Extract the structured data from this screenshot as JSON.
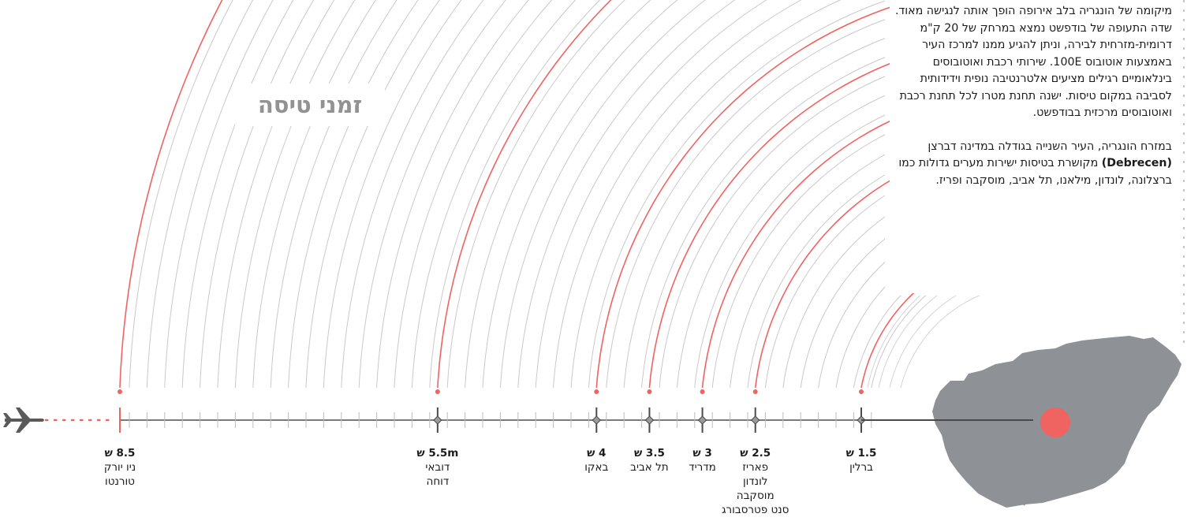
{
  "title": "זמני טיסה",
  "description": {
    "p1": "מיקומה של הונגריה בלב אירופה הופך אותה לנגישה מאוד. שדה התעופה של בודפשט נמצא במרחק של 20 ק\"מ דרומית-מזרחית לבירה, וניתן להגיע ממנו למרכז העיר באמצעות אוטובוס 100E. שירותי רכבת ואוטובוסים בינלאומיים רגילים מציעים אלטרנטיבה נופית וידידותית לסביבה במקום טיסות. ישנה תחנת מטרו לכל תחנת רכבת ואוטובוסים מרכזית בבודפשט.",
    "p2_before": "במזרח הונגריה, העיר השנייה בגודלה במדינה דברצן ",
    "p2_bold": "(Debrecen)",
    "p2_after": " מקושרת בטיסות ישירות מערים גדולות כמו ברצלונה, לונדון, מילאנו, תל אביב, מוסקבה ופריז."
  },
  "colors": {
    "accent": "#ef6461",
    "line": "#7a7a7a",
    "map": "#8e9195",
    "plane": "#5a5a5a"
  },
  "icons": {
    "plane": "airplane-icon",
    "hungary": "hungary-map-icon",
    "origin": "budapest-dot-icon"
  },
  "flights": [
    {
      "time": "1.5 ש",
      "cities": [
        "ברלין"
      ]
    },
    {
      "time": "2.5 ש",
      "cities": [
        "פאריז",
        "לונדון",
        "מוסקבה",
        "סנט פטרסבורג"
      ]
    },
    {
      "time": "3 ש",
      "cities": [
        "מדריד"
      ]
    },
    {
      "time": "3.5 ש",
      "cities": [
        "תל אביב"
      ]
    },
    {
      "time": "4 ש",
      "cities": [
        "באקו"
      ]
    },
    {
      "time": "5.5m ש",
      "cities": [
        "דובאי",
        "דוחה"
      ]
    },
    {
      "time": "8.5 ש",
      "cities": [
        "ניו יורק",
        "טורנטו"
      ]
    }
  ]
}
